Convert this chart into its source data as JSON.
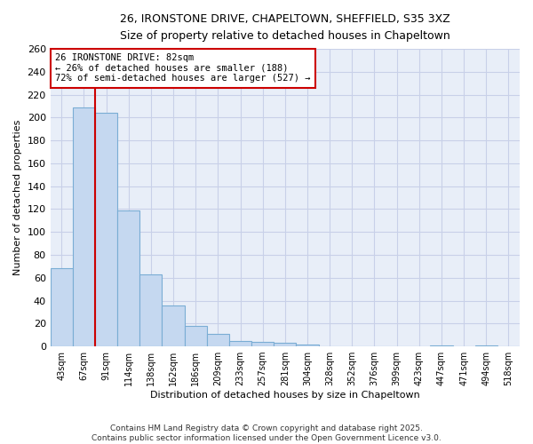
{
  "title_line1": "26, IRONSTONE DRIVE, CHAPELTOWN, SHEFFIELD, S35 3XZ",
  "title_line2": "Size of property relative to detached houses in Chapeltown",
  "xlabel": "Distribution of detached houses by size in Chapeltown",
  "ylabel": "Number of detached properties",
  "bar_color": "#c5d8f0",
  "bar_edge_color": "#7aadd4",
  "background_color": "#e8eef8",
  "grid_color": "#c8d0e8",
  "property_line_color": "#cc0000",
  "categories": [
    "43sqm",
    "67sqm",
    "91sqm",
    "114sqm",
    "138sqm",
    "162sqm",
    "186sqm",
    "209sqm",
    "233sqm",
    "257sqm",
    "281sqm",
    "304sqm",
    "328sqm",
    "352sqm",
    "376sqm",
    "399sqm",
    "423sqm",
    "447sqm",
    "471sqm",
    "494sqm",
    "518sqm"
  ],
  "values": [
    68,
    209,
    204,
    119,
    63,
    36,
    18,
    11,
    5,
    4,
    3,
    2,
    0,
    0,
    0,
    0,
    0,
    1,
    0,
    1,
    0
  ],
  "property_bin_index": 2,
  "annotation_text_line1": "26 IRONSTONE DRIVE: 82sqm",
  "annotation_text_line2": "← 26% of detached houses are smaller (188)",
  "annotation_text_line3": "72% of semi-detached houses are larger (527) →",
  "footer_line1": "Contains HM Land Registry data © Crown copyright and database right 2025.",
  "footer_line2": "Contains public sector information licensed under the Open Government Licence v3.0.",
  "ylim": [
    0,
    260
  ],
  "yticks": [
    0,
    20,
    40,
    60,
    80,
    100,
    120,
    140,
    160,
    180,
    200,
    220,
    240,
    260
  ]
}
